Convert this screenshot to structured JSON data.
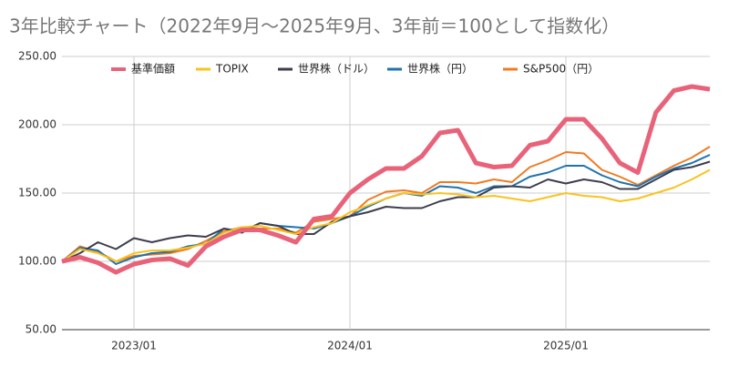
{
  "chart_data": {
    "type": "line",
    "title": "3年比較チャート（2022年9月〜2025年9月、3年前＝100として指数化）",
    "categories": [
      null,
      null,
      null,
      null,
      "2023/01",
      null,
      null,
      null,
      null,
      null,
      null,
      null,
      null,
      null,
      null,
      null,
      "2024/01",
      null,
      null,
      null,
      null,
      null,
      null,
      null,
      null,
      null,
      null,
      null,
      "2025/01",
      null,
      null,
      null,
      null,
      null,
      null,
      null,
      null
    ],
    "series": [
      {
        "name": "基準価額",
        "color": "#e8637a",
        "values": [
          100,
          103,
          99,
          92,
          98,
          101,
          102,
          97,
          111,
          118,
          123,
          123,
          119,
          114,
          131,
          133,
          150,
          160,
          168,
          168,
          177,
          194,
          196,
          172,
          169,
          170,
          185,
          188,
          204,
          204,
          190,
          172,
          165,
          209,
          225,
          228,
          226
        ]
      },
      {
        "name": "TOPIX",
        "color": "#f9c31f",
        "values": [
          100,
          109,
          106,
          100,
          106,
          108,
          108,
          110,
          113,
          121,
          125,
          126,
          123,
          120,
          125,
          128,
          136,
          141,
          146,
          150,
          149,
          150,
          149,
          147,
          148,
          146,
          144,
          147,
          150,
          148,
          147,
          144,
          146,
          150,
          154,
          160,
          167
        ]
      },
      {
        "name": "世界株（ドル）",
        "color": "#3d3d4d",
        "values": [
          100,
          106,
          114,
          109,
          117,
          114,
          117,
          119,
          118,
          124,
          121,
          128,
          126,
          120,
          120,
          129,
          133,
          136,
          140,
          139,
          139,
          144,
          147,
          147,
          154,
          155,
          154,
          160,
          157,
          160,
          158,
          153,
          153,
          160,
          167,
          169,
          173
        ]
      },
      {
        "name": "世界株（円）",
        "color": "#1e73b0",
        "values": [
          100,
          110,
          108,
          98,
          103,
          106,
          107,
          111,
          113,
          124,
          122,
          128,
          126,
          125,
          124,
          128,
          133,
          140,
          146,
          150,
          148,
          155,
          154,
          150,
          155,
          155,
          162,
          165,
          170,
          170,
          163,
          158,
          155,
          162,
          168,
          172,
          178
        ]
      },
      {
        "name": "S&P500（円）",
        "color": "#f07b22",
        "values": [
          100,
          111,
          107,
          100,
          104,
          105,
          106,
          109,
          115,
          122,
          125,
          124,
          124,
          121,
          129,
          131,
          133,
          145,
          151,
          152,
          150,
          158,
          158,
          157,
          160,
          158,
          169,
          174,
          180,
          179,
          167,
          162,
          156,
          163,
          170,
          176,
          184
        ]
      }
    ],
    "ylim": [
      50,
      250
    ],
    "yticks": [
      {
        "value": 50,
        "label": "50.00"
      },
      {
        "value": 100,
        "label": "100.00"
      },
      {
        "value": 150,
        "label": "150.00"
      },
      {
        "value": 200,
        "label": "200.00"
      },
      {
        "value": 250,
        "label": "250.00"
      }
    ],
    "grid": true,
    "legend": "top"
  }
}
